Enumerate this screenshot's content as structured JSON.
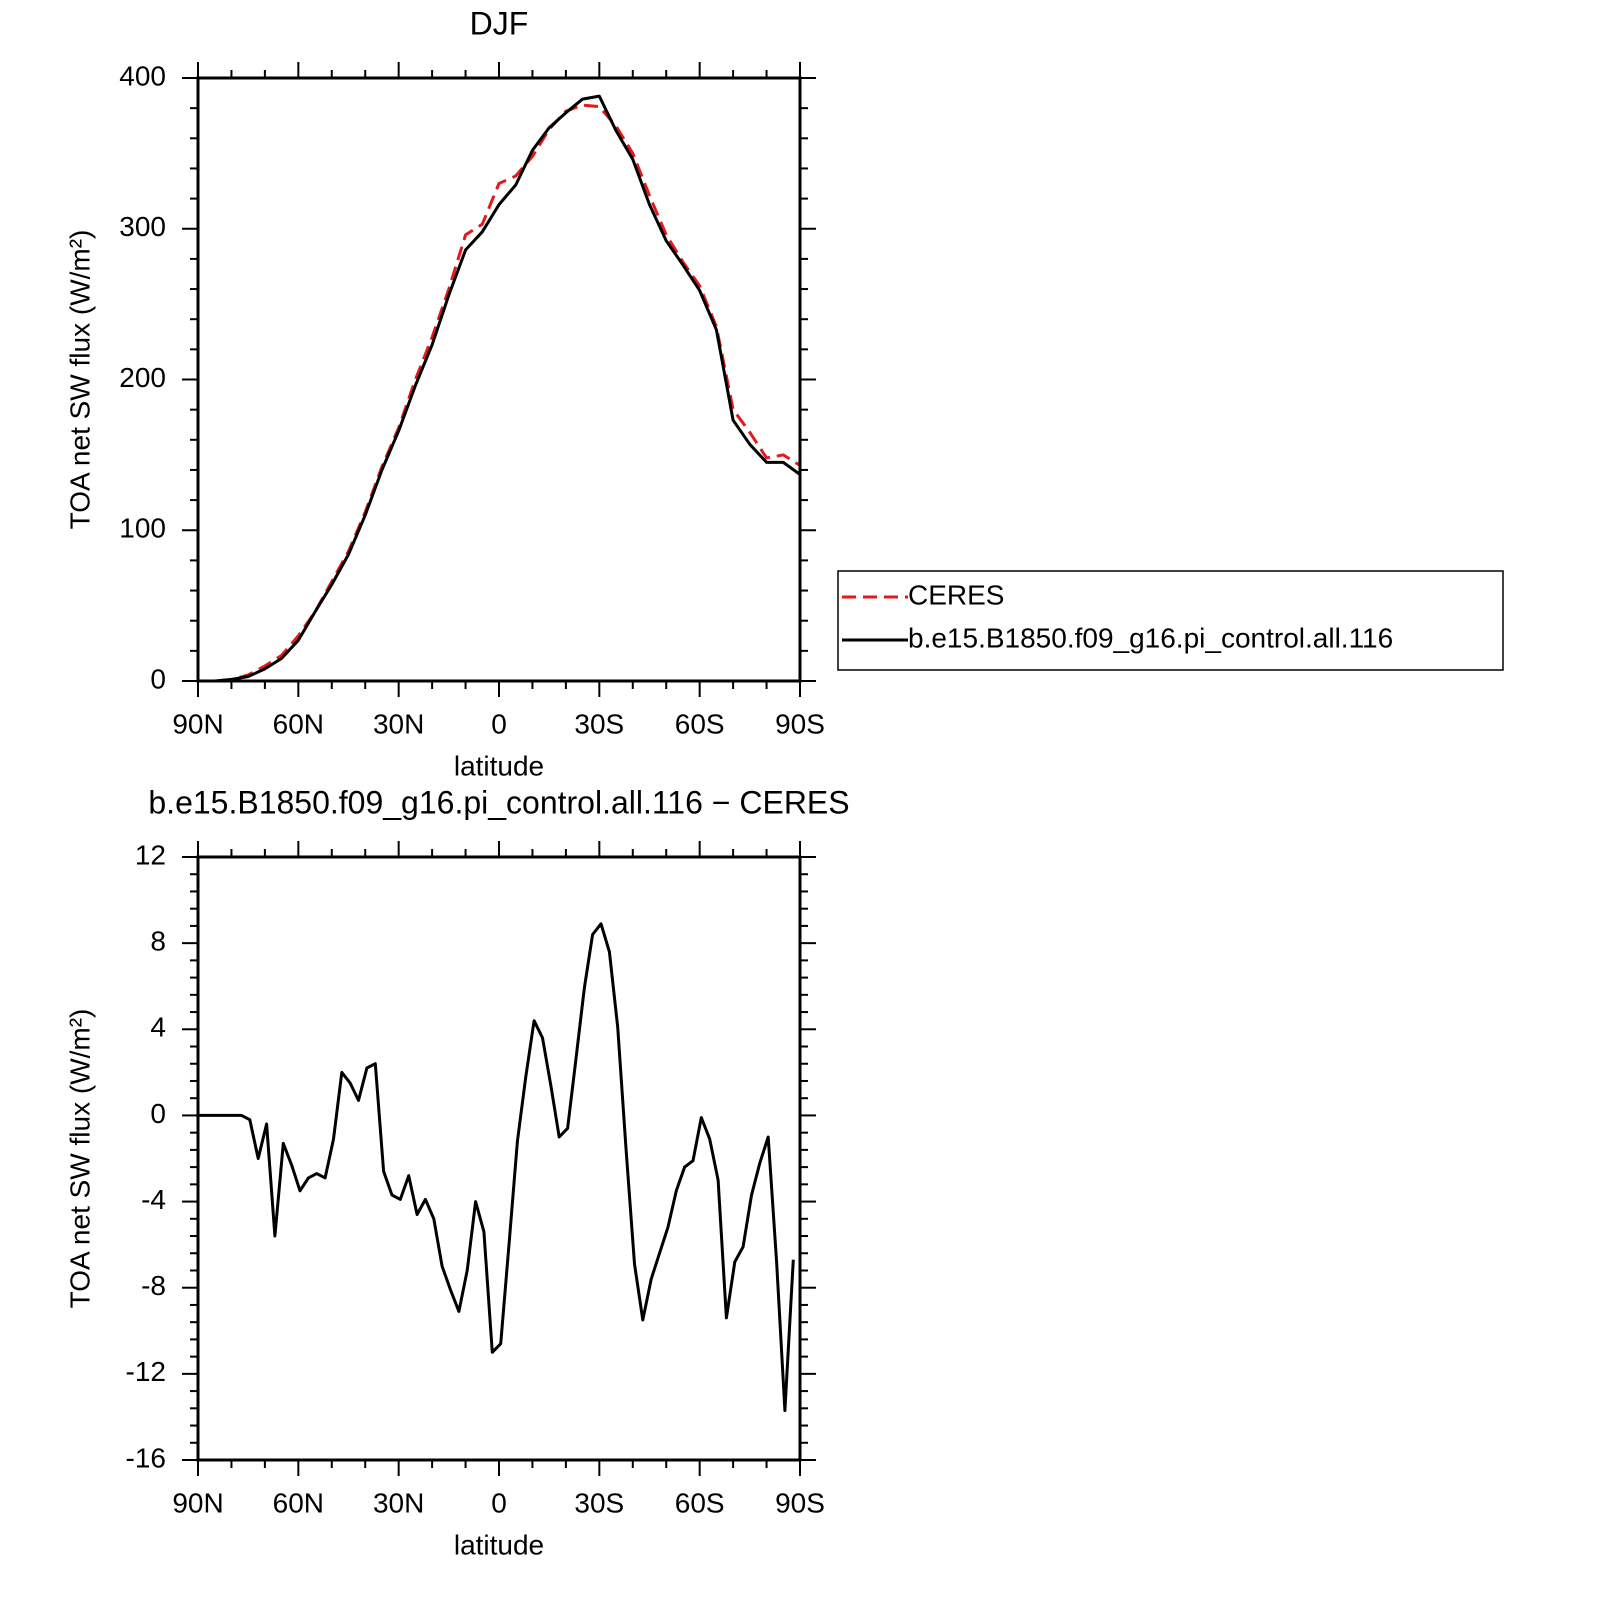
{
  "chart_data": [
    {
      "type": "line",
      "title": "DJF",
      "xlabel": "latitude",
      "ylabel": "TOA net SW flux (W/m²)",
      "x": [
        90,
        85,
        80,
        75,
        70,
        65,
        60,
        55,
        50,
        45,
        40,
        35,
        30,
        25,
        20,
        15,
        10,
        5,
        0,
        -5,
        -10,
        -15,
        -20,
        -25,
        -30,
        -35,
        -40,
        -45,
        -50,
        -55,
        -60,
        -65,
        -70,
        -75,
        -80,
        -85,
        -90
      ],
      "series": [
        {
          "name": "CERES",
          "color": "#e31a1c",
          "dash": true,
          "values": [
            0,
            0,
            1,
            4,
            10,
            17,
            30,
            46,
            66,
            86,
            112,
            142,
            168,
            200,
            228,
            260,
            296,
            303,
            330,
            335,
            348,
            366,
            378,
            382,
            381,
            368,
            350,
            322,
            296,
            278,
            262,
            235,
            180,
            165,
            148,
            150,
            143
          ]
        },
        {
          "name": "b.e15.B1850.f09_g16.pi_control.all.116",
          "color": "#000000",
          "dash": false,
          "values": [
            0,
            0,
            1,
            3,
            8,
            15,
            27,
            46,
            64,
            84,
            110,
            140,
            166,
            196,
            223,
            256,
            286,
            298,
            316,
            329,
            352,
            367,
            377,
            386,
            388,
            365,
            346,
            316,
            292,
            276,
            259,
            233,
            173,
            157,
            145,
            145,
            137
          ]
        }
      ],
      "xlim": [
        90,
        -90
      ],
      "xticks": [
        {
          "value": 90,
          "label": "90N"
        },
        {
          "value": 60,
          "label": "60N"
        },
        {
          "value": 30,
          "label": "30N"
        },
        0,
        {
          "value": -30,
          "label": "30S"
        },
        {
          "value": -60,
          "label": "60S"
        },
        {
          "value": -90,
          "label": "90S"
        }
      ],
      "ylim": [
        0,
        400
      ],
      "yticks": [
        0,
        100,
        200,
        300,
        400
      ],
      "legend": "right"
    },
    {
      "type": "line",
      "title": "b.e15.B1850.f09_g16.pi_control.all.116 − CERES",
      "xlabel": "latitude",
      "ylabel": "TOA net SW flux (W/m²)",
      "x": [
        90,
        77,
        74.5,
        72,
        69.5,
        67,
        64.5,
        62,
        59.5,
        57,
        54.5,
        52,
        49.5,
        47,
        44.5,
        42,
        39.5,
        37,
        34.5,
        32,
        29.5,
        27,
        24.5,
        22,
        19.5,
        17,
        14.5,
        12,
        9.5,
        7,
        4.5,
        2,
        -0.5,
        -3,
        -5.5,
        -8,
        -10.5,
        -13,
        -15.5,
        -18,
        -20.5,
        -23,
        -25.5,
        -28,
        -30.5,
        -33,
        -35.5,
        -38,
        -40.5,
        -43,
        -45.5,
        -48,
        -50.5,
        -53,
        -55.5,
        -58,
        -60.5,
        -63,
        -65.5,
        -68,
        -70.5,
        -73,
        -75.5,
        -78,
        -80.5,
        -83,
        -85.5,
        -88
      ],
      "values": [
        0,
        0,
        -0.2,
        -2,
        -0.4,
        -5.6,
        -1.3,
        -2.3,
        -3.5,
        -2.9,
        -2.7,
        -2.9,
        -1.1,
        2.0,
        1.5,
        0.7,
        2.2,
        2.4,
        -2.6,
        -3.7,
        -3.9,
        -2.8,
        -4.6,
        -3.9,
        -4.8,
        -7.0,
        -8.1,
        -9.1,
        -7.2,
        -4.0,
        -5.4,
        -11.0,
        -10.6,
        -6.0,
        -1.2,
        1.8,
        4.4,
        3.6,
        1.4,
        -1.0,
        -0.6,
        2.6,
        5.9,
        8.4,
        8.9,
        7.6,
        4.1,
        -1.6,
        -6.9,
        -9.5,
        -7.6,
        -6.4,
        -5.2,
        -3.5,
        -2.4,
        -2.1,
        -0.1,
        -1.1,
        -3.0,
        -9.4,
        -6.8,
        -6.1,
        -3.7,
        -2.2,
        -1.0,
        -6.8,
        -13.7,
        -6.7
      ],
      "color": "#000000",
      "xlim": [
        90,
        -90
      ],
      "xticks": [
        {
          "value": 90,
          "label": "90N"
        },
        {
          "value": 60,
          "label": "60N"
        },
        {
          "value": 30,
          "label": "30N"
        },
        0,
        {
          "value": -30,
          "label": "30S"
        },
        {
          "value": -60,
          "label": "60S"
        },
        {
          "value": -90,
          "label": "90S"
        }
      ],
      "ylim": [
        -16,
        12
      ],
      "yticks": [
        -16,
        -12,
        -8,
        -4,
        0,
        4,
        8,
        12
      ]
    }
  ]
}
